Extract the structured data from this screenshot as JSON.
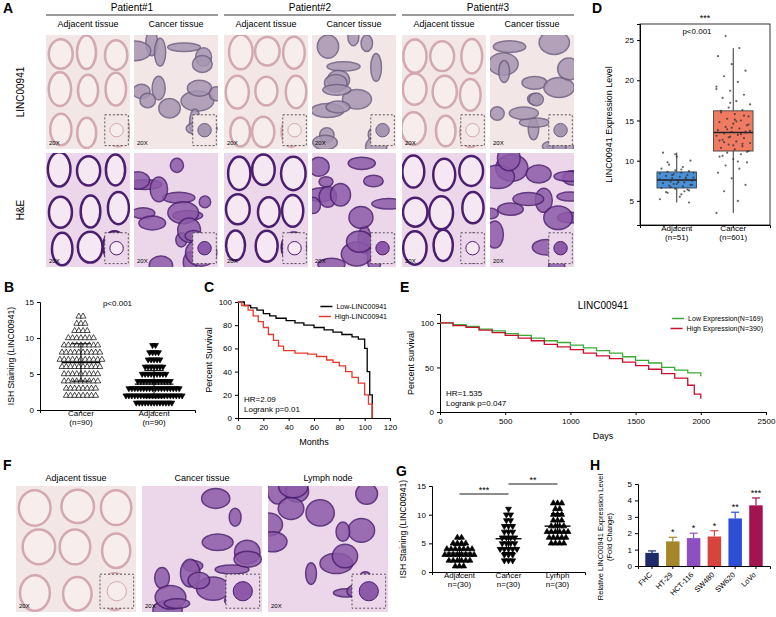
{
  "image_panels": [
    {
      "panel_label": "A",
      "patients": [
        "Patient#1",
        "Patient#2",
        "Patient#3"
      ],
      "columns": [
        "Adjacent tissue",
        "Cancer tissue"
      ],
      "rows": [
        "LINC00941",
        "H&E"
      ],
      "magnification": "20X"
    },
    {
      "panel_label": "F",
      "columns": [
        "Adjacent tissue",
        "Cancer tissue",
        "Lymph node"
      ],
      "magnification": "20X"
    }
  ],
  "chart_data": [
    {
      "panel_label": "B",
      "type": "dot",
      "y_label": "ISH Staining (LINC00941)",
      "categories": [
        "Cancer\n(n=90)",
        "Adjacent\n(n=90)"
      ],
      "ylim": [
        0,
        15
      ],
      "yticks": [
        0,
        5,
        10,
        15
      ],
      "annotation": "p<0.001",
      "groups": [
        {
          "marker": "triangle-up-open",
          "mean": 6.6,
          "sd": 2.6,
          "values": [
            13,
            13,
            12,
            12,
            12,
            11,
            11,
            11,
            11,
            10,
            10,
            10,
            10,
            10,
            10,
            10,
            9,
            9,
            9,
            9,
            9,
            9,
            9,
            9,
            9,
            8,
            8,
            8,
            8,
            8,
            8,
            8,
            8,
            8,
            8,
            7,
            7,
            7,
            7,
            7,
            7,
            7,
            7,
            7,
            7,
            7,
            6,
            6,
            6,
            6,
            6,
            6,
            6,
            6,
            6,
            6,
            5,
            5,
            5,
            5,
            5,
            5,
            5,
            5,
            5,
            4,
            4,
            4,
            4,
            4,
            4,
            4,
            4,
            4,
            3,
            3,
            3,
            3,
            3,
            3,
            3,
            3,
            2,
            2,
            2,
            2,
            2,
            2,
            2,
            2
          ]
        },
        {
          "marker": "triangle-down",
          "mean": 3.6,
          "sd": 1.9,
          "values": [
            9,
            9,
            8,
            8,
            8,
            8,
            7,
            7,
            7,
            7,
            7,
            6,
            6,
            6,
            6,
            6,
            6,
            6,
            5,
            5,
            5,
            5,
            5,
            5,
            5,
            5,
            5,
            4,
            4,
            4,
            4,
            4,
            4,
            4,
            4,
            4,
            4,
            4,
            4,
            3,
            3,
            3,
            3,
            3,
            3,
            3,
            3,
            3,
            3,
            3,
            3,
            3,
            3,
            3,
            3,
            3,
            3,
            2,
            2,
            2,
            2,
            2,
            2,
            2,
            2,
            2,
            2,
            2,
            2,
            2,
            2,
            2,
            2,
            2,
            2,
            2,
            2,
            1,
            1,
            1,
            1,
            1,
            1,
            1,
            1,
            1,
            1,
            1,
            1,
            1
          ]
        }
      ]
    },
    {
      "panel_label": "C",
      "type": "line",
      "x_label": "Months",
      "y_label": "Percent Survival",
      "xlim": [
        0,
        120
      ],
      "xticks": [
        0,
        20,
        40,
        60,
        80,
        100,
        120
      ],
      "ylim": [
        0,
        100
      ],
      "yticks": [
        0,
        20,
        40,
        60,
        80,
        100
      ],
      "legend": "upper right",
      "line_style": "step",
      "annotations": [
        "HR=2.09",
        "Logrank p=0.01"
      ],
      "series": [
        {
          "name": "Low-LINC00941",
          "color": "#000000",
          "x": [
            0,
            5,
            10,
            15,
            20,
            25,
            30,
            38,
            45,
            52,
            60,
            68,
            75,
            82,
            90,
            95,
            100,
            102,
            104,
            106
          ],
          "values": [
            100,
            97,
            95,
            93,
            90,
            88,
            86,
            84,
            82,
            80,
            78,
            76,
            74,
            72,
            70,
            68,
            60,
            40,
            20,
            0
          ]
        },
        {
          "name": "High-LINC00941",
          "color": "#e8382b",
          "x": [
            0,
            3,
            8,
            12,
            16,
            20,
            24,
            28,
            32,
            36,
            45,
            55,
            62,
            70,
            75,
            80,
            85,
            90,
            95,
            100,
            103,
            106
          ],
          "values": [
            100,
            97,
            93,
            88,
            83,
            78,
            72,
            67,
            62,
            58,
            56,
            55,
            53,
            50,
            48,
            45,
            40,
            35,
            30,
            20,
            12,
            0
          ]
        }
      ]
    },
    {
      "panel_label": "D",
      "type": "box",
      "y_label": "LINC00941 Expression Level",
      "categories": [
        "Adjacent\n(n=51)",
        "Cancer\n(n=601)"
      ],
      "ylim": [
        2,
        27
      ],
      "yticks": [
        5,
        10,
        15,
        20,
        25
      ],
      "annotations": [
        "p<0.001"
      ],
      "significance": [
        "***"
      ],
      "colors": [
        "#4a90d9",
        "#f07b63"
      ],
      "boxes": [
        {
          "whisker_low": 4.8,
          "q1": 6.6,
          "median": 7.6,
          "q3": 8.6,
          "whisker_high": 11,
          "points": [
            5.2,
            5.8,
            6.0,
            6.3,
            6.5,
            6.6,
            6.8,
            6.9,
            7.0,
            7.1,
            7.2,
            7.3,
            7.4,
            7.5,
            7.5,
            7.6,
            7.7,
            7.8,
            7.9,
            8.0,
            8.1,
            8.2,
            8.3,
            8.4,
            8.5,
            8.6,
            8.7,
            8.8,
            9.0,
            9.2,
            9.5,
            10.0,
            10.5,
            11.0,
            6.2,
            6.7,
            7.0,
            7.3,
            7.6,
            7.9,
            8.2,
            8.5,
            5.5,
            6.1,
            6.4,
            7.1,
            7.7,
            8.9,
            9.8,
            4.8,
            10.8
          ]
        },
        {
          "whisker_low": 3.5,
          "q1": 11.2,
          "median": 13.5,
          "q3": 16.2,
          "whisker_high": 24,
          "points": [
            3.5,
            5.0,
            6.2,
            7.0,
            7.8,
            8.5,
            9.0,
            9.4,
            9.8,
            10.2,
            10.5,
            10.8,
            11.0,
            11.2,
            11.4,
            11.6,
            11.8,
            12.0,
            12.2,
            12.4,
            12.6,
            12.8,
            13.0,
            13.1,
            13.2,
            13.4,
            13.5,
            13.6,
            13.8,
            14.0,
            14.2,
            14.4,
            14.6,
            14.8,
            15.0,
            15.2,
            15.5,
            15.8,
            16.0,
            16.3,
            16.6,
            17.0,
            17.4,
            17.8,
            18.2,
            18.7,
            19.2,
            19.8,
            20.5,
            21.2,
            22.0,
            23.0,
            24.0,
            25.5,
            11.1,
            11.9,
            12.5,
            13.3,
            13.9,
            14.5,
            15.1,
            16.2,
            12.1,
            12.9,
            13.7,
            14.9,
            10.6,
            15.6,
            17.2,
            18.9,
            9.9,
            12.3,
            13.6,
            14.1
          ]
        }
      ]
    },
    {
      "panel_label": "E",
      "type": "line",
      "title": "LINC00941",
      "x_label": "Days",
      "y_label": "Percent survival",
      "xlim": [
        0,
        2500
      ],
      "xticks": [
        0,
        500,
        1000,
        1500,
        2000,
        2500
      ],
      "ylim": [
        0,
        110
      ],
      "yticks": [
        0,
        50,
        100
      ],
      "legend": "upper right",
      "line_style": "step",
      "annotations": [
        "HR=1.535",
        "Logrank p=0.047"
      ],
      "series": [
        {
          "name": "Low Expression(N=169)",
          "color": "#3aa935",
          "x": [
            0,
            100,
            200,
            300,
            400,
            500,
            600,
            700,
            800,
            900,
            1000,
            1100,
            1200,
            1300,
            1400,
            1500,
            1600,
            1700,
            1800,
            1900,
            2000
          ],
          "values": [
            100,
            98,
            96,
            93,
            91,
            88,
            86,
            83,
            80,
            78,
            75,
            72,
            69,
            66,
            62,
            58,
            55,
            50,
            47,
            44,
            40
          ]
        },
        {
          "name": "High Expression(N=390)",
          "color": "#c8102e",
          "x": [
            0,
            100,
            200,
            300,
            400,
            500,
            600,
            700,
            800,
            900,
            1000,
            1100,
            1200,
            1300,
            1400,
            1500,
            1600,
            1700,
            1800,
            1900,
            1950,
            2000
          ],
          "values": [
            100,
            97,
            95,
            92,
            89,
            86,
            83,
            80,
            76,
            73,
            70,
            66,
            63,
            60,
            56,
            52,
            48,
            43,
            38,
            30,
            20,
            15
          ]
        }
      ]
    },
    {
      "panel_label": "G",
      "type": "dot",
      "y_label": "ISH Staining (LINC00941)",
      "categories": [
        "Adjacent\nn=(30)",
        "Cancer\nn=(30)",
        "Lymph\nn=(30)"
      ],
      "ylim": [
        0,
        15
      ],
      "yticks": [
        0,
        5,
        10,
        15
      ],
      "significance": [
        "***",
        "**"
      ],
      "groups": [
        {
          "marker": "triangle-up",
          "mean": 3.3,
          "sd": 1.3,
          "values": [
            6,
            6,
            5,
            5,
            5,
            5,
            4,
            4,
            4,
            4,
            4,
            4,
            4,
            3,
            3,
            3,
            3,
            3,
            3,
            3,
            3,
            2,
            2,
            2,
            2,
            2,
            2,
            1,
            1,
            1
          ]
        },
        {
          "marker": "triangle-down",
          "mean": 5.8,
          "sd": 2.4,
          "values": [
            11,
            10,
            10,
            9,
            9,
            8,
            8,
            8,
            7,
            7,
            7,
            6,
            6,
            6,
            6,
            5,
            5,
            5,
            5,
            4,
            4,
            4,
            4,
            4,
            3,
            3,
            3,
            2,
            2,
            2
          ]
        },
        {
          "marker": "triangle-up",
          "mean": 8.0,
          "sd": 2.2,
          "values": [
            12,
            12,
            12,
            11,
            11,
            10,
            10,
            10,
            9,
            9,
            9,
            8,
            8,
            8,
            8,
            7,
            7,
            7,
            7,
            7,
            7,
            6,
            6,
            6,
            6,
            6,
            5,
            5,
            5,
            5
          ]
        }
      ]
    },
    {
      "panel_label": "H",
      "type": "bar",
      "y_label": "Relative LINC00941 Expression Level\n(Fold Change)",
      "categories": [
        "FHC",
        "HT-29",
        "HCT-116",
        "SW480",
        "SW620",
        "LoVo"
      ],
      "values": [
        0.8,
        1.5,
        1.7,
        1.8,
        2.9,
        3.7
      ],
      "errors": [
        0.12,
        0.25,
        0.3,
        0.35,
        0.38,
        0.45
      ],
      "colors": [
        "#1f2a6b",
        "#a5872a",
        "#8e4fc2",
        "#d8443c",
        "#2d4fd6",
        "#a3134f"
      ],
      "ylim": [
        0,
        5
      ],
      "yticks": [
        0,
        1,
        2,
        3,
        4,
        5
      ],
      "significance": [
        null,
        "*",
        "*",
        "*",
        "**",
        "***"
      ]
    }
  ]
}
